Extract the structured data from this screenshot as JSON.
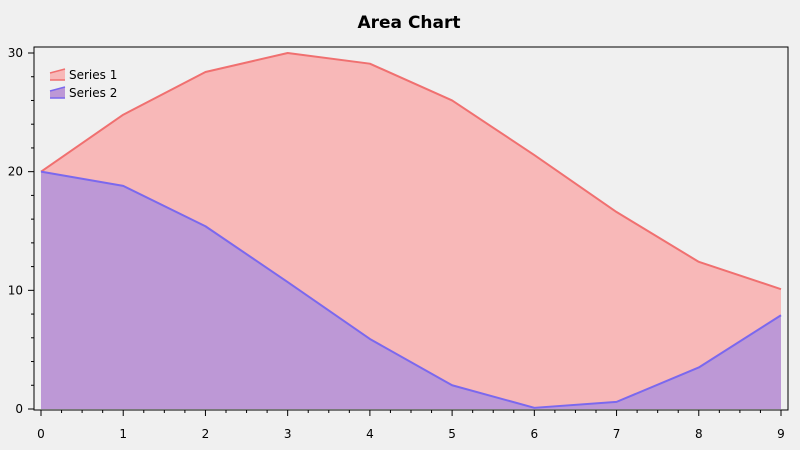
{
  "chart_data": {
    "type": "area",
    "title": "Area Chart",
    "xlabel": "",
    "ylabel": "",
    "x": [
      0,
      1,
      2,
      3,
      4,
      5,
      6,
      7,
      8,
      9
    ],
    "xlim": [
      0,
      9
    ],
    "ylim": [
      0,
      30
    ],
    "x_ticks": [
      0,
      1,
      2,
      3,
      4,
      5,
      6,
      7,
      8,
      9
    ],
    "y_ticks": [
      0,
      10,
      20,
      30
    ],
    "grid": false,
    "legend_position": "top-left",
    "series": [
      {
        "name": "Series 1",
        "values": [
          20.0,
          24.8,
          28.4,
          30.0,
          29.1,
          26.0,
          21.4,
          16.6,
          12.4,
          10.1
        ],
        "line_color": "#f07070",
        "fill_color": "#f8b8b8"
      },
      {
        "name": "Series 2",
        "values": [
          20.0,
          18.8,
          15.4,
          10.7,
          5.9,
          2.0,
          0.1,
          0.6,
          3.5,
          7.9
        ],
        "line_color": "#7b68ee",
        "fill_color": "#bd98d6"
      }
    ]
  }
}
